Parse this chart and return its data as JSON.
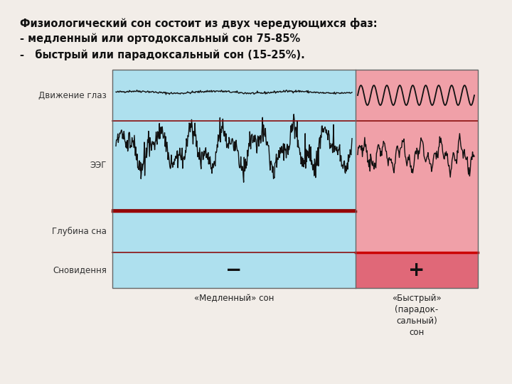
{
  "title_line1": "Физиологический сон состоит из двух чередующихся фаз:",
  "title_line2": "- медленный или ортодоксальный сон 75-85%",
  "title_line3": "-   быстрый или парадоксальный сон (15-25%).",
  "slow_color": "#aee0ee",
  "fast_color": "#f0a0a8",
  "fast_dreams_color": "#e06878",
  "slow_label": "«Медленный» сон",
  "fast_label": "«Быстрый»\n(парадок-\nсальный)\nсон",
  "row_labels": [
    "Движение глаз",
    "ЭЭГ",
    "Глубина сна",
    "Сновидення"
  ],
  "background_color": "#f2ede8",
  "minus_sign": "−",
  "plus_sign": "+"
}
